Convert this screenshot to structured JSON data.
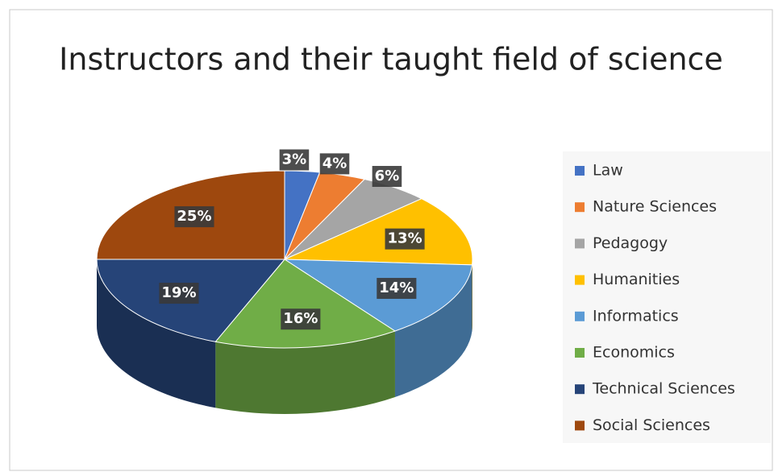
{
  "chart_data": {
    "type": "pie",
    "title": "Instructors and their taught field of science",
    "categories": [
      "Law",
      "Nature Sciences",
      "Pedagogy",
      "Humanities",
      "Informatics",
      "Economics",
      "Technical Sciences",
      "Social Sciences"
    ],
    "values": [
      3,
      4,
      6,
      13,
      14,
      16,
      19,
      25
    ],
    "value_labels": [
      "3%",
      "4%",
      "6%",
      "13%",
      "14%",
      "16%",
      "19%",
      "25%"
    ],
    "colors": [
      "#4472c4",
      "#ed7d31",
      "#a5a5a5",
      "#ffc000",
      "#5b9bd5",
      "#70ad47",
      "#264478",
      "#9e480e"
    ],
    "legend": "right"
  }
}
